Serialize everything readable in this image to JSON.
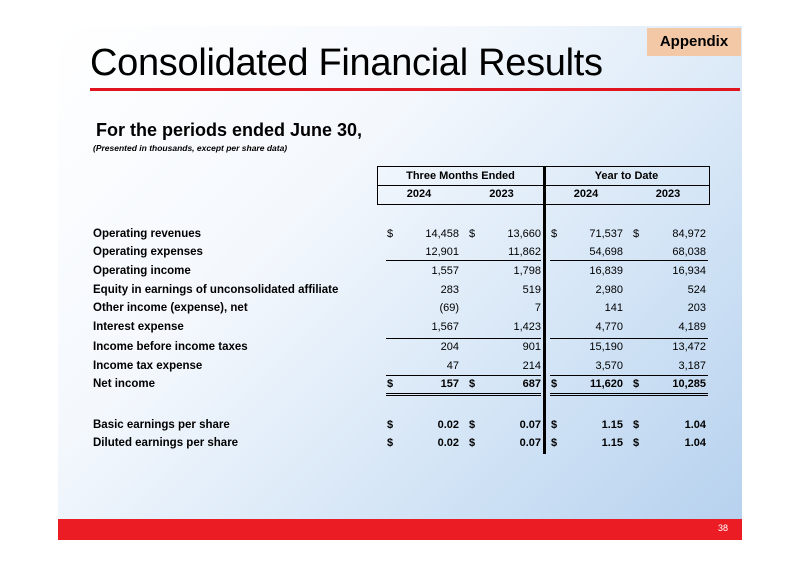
{
  "slide": {
    "tag": "Appendix",
    "title": "Consolidated Financial Results",
    "subtitle": "For the periods ended June 30,",
    "note": "(Presented in thousands, except per share data)",
    "page_number": "38"
  },
  "table": {
    "groups": [
      "Three Months Ended",
      "Year to Date"
    ],
    "years": [
      "2024",
      "2023",
      "2024",
      "2023"
    ],
    "currency_symbol": "$",
    "rows": [
      {
        "label": "Operating revenues",
        "values": [
          "14,458",
          "13,660",
          "71,537",
          "84,972"
        ]
      },
      {
        "label": "Operating expenses",
        "values": [
          "12,901",
          "11,862",
          "54,698",
          "68,038"
        ]
      },
      {
        "label": "Operating income",
        "values": [
          "1,557",
          "1,798",
          "16,839",
          "16,934"
        ]
      },
      {
        "label": "Equity in earnings of unconsolidated affiliate",
        "values": [
          "283",
          "519",
          "2,980",
          "524"
        ]
      },
      {
        "label": "Other income (expense), net",
        "values": [
          "(69)",
          "7",
          "141",
          "203"
        ]
      },
      {
        "label": "Interest expense",
        "values": [
          "1,567",
          "1,423",
          "4,770",
          "4,189"
        ]
      },
      {
        "label": "Income before income taxes",
        "values": [
          "204",
          "901",
          "15,190",
          "13,472"
        ]
      },
      {
        "label": "Income tax expense",
        "values": [
          "47",
          "214",
          "3,570",
          "3,187"
        ]
      },
      {
        "label": "Net income",
        "values": [
          "157",
          "687",
          "11,620",
          "10,285"
        ]
      },
      {
        "label": "Basic earnings per share",
        "values": [
          "0.02",
          "0.07",
          "1.15",
          "1.04"
        ]
      },
      {
        "label": "Diluted earnings per share",
        "values": [
          "0.02",
          "0.07",
          "1.15",
          "1.04"
        ]
      }
    ]
  }
}
